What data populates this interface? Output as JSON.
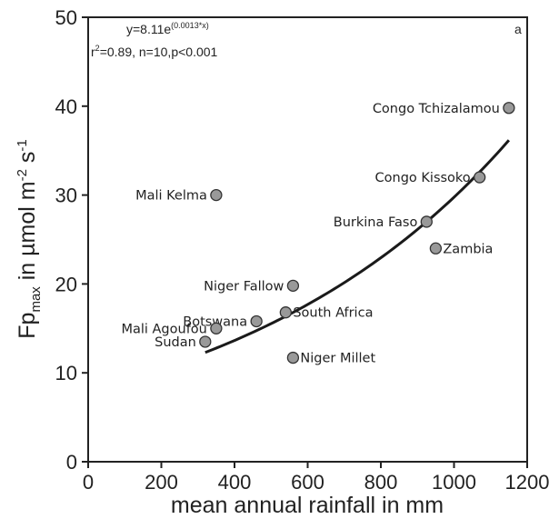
{
  "chart_data": {
    "type": "scatter",
    "panel_label": "a",
    "xlabel": "mean annual rainfall in mm",
    "ylabel": {
      "main": "Fp",
      "sub": "max",
      "mid": " in µmol m",
      "sup1": "-2",
      "mid2": " s",
      "sup2": "-1"
    },
    "xlim": [
      0,
      1200
    ],
    "ylim": [
      0,
      50
    ],
    "xticks": [
      0,
      200,
      400,
      600,
      800,
      1000,
      1200
    ],
    "yticks": [
      0,
      10,
      20,
      30,
      40,
      50
    ],
    "grid": false,
    "equation": {
      "base": "y=8.11e",
      "exponent": "(0.0013*x)"
    },
    "stats": {
      "r": "r",
      "r_sup": "2",
      "rest": "=0.89, n=10,p<0.001"
    },
    "fit": {
      "a": 8.11,
      "b": 0.0013,
      "x_range": [
        320,
        1150
      ]
    },
    "points": [
      {
        "label": "Congo Tchizalamou",
        "x": 1150,
        "y": 39.8,
        "label_side": "left"
      },
      {
        "label": "Congo Kissoko",
        "x": 1070,
        "y": 32,
        "label_side": "left"
      },
      {
        "label": "Mali Kelma",
        "x": 350,
        "y": 30,
        "label_side": "left"
      },
      {
        "label": "Burkina Faso",
        "x": 925,
        "y": 27,
        "label_side": "left"
      },
      {
        "label": "Zambia",
        "x": 950,
        "y": 24,
        "label_side": "right"
      },
      {
        "label": "Niger Fallow",
        "x": 560,
        "y": 19.8,
        "label_side": "left"
      },
      {
        "label": "South Africa",
        "x": 540,
        "y": 16.8,
        "label_side": "right"
      },
      {
        "label": "Botswana",
        "x": 460,
        "y": 15.8,
        "label_side": "left"
      },
      {
        "label": "Mali Agoufou",
        "x": 350,
        "y": 15,
        "label_side": "left"
      },
      {
        "label": "Sudan",
        "x": 320,
        "y": 13.5,
        "label_side": "left"
      },
      {
        "label": "Niger Millet",
        "x": 560,
        "y": 11.7,
        "label_side": "right"
      }
    ],
    "colors": {
      "marker_fill": "#999999",
      "marker_stroke": "#333333",
      "line": "#1a1a1a",
      "axis": "#222222"
    }
  }
}
